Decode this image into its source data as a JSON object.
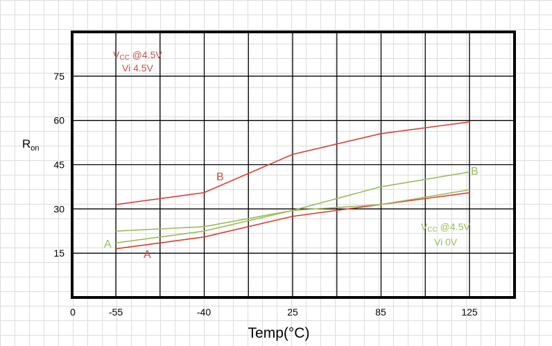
{
  "chart_data": {
    "type": "line",
    "title": "",
    "xlabel": "Temp(°C)",
    "ylabel": {
      "main": "R",
      "sub": "on"
    },
    "x_ticks": [
      "0",
      "-55",
      "-40",
      "25",
      "85",
      "125"
    ],
    "x_categories": [
      "-55",
      "-40",
      "25",
      "85",
      "125"
    ],
    "y_ticks": [
      15,
      30,
      45,
      60,
      75
    ],
    "ylim": [
      0,
      90
    ],
    "grid": true,
    "series": [
      {
        "name": "A",
        "group": "Vi 4.5V",
        "color": "#e0392b",
        "values": [
          16.5,
          20.5,
          27.5,
          31.5,
          35.5
        ]
      },
      {
        "name": "B",
        "group": "Vi 4.5V",
        "color": "#e0392b",
        "values": [
          31.5,
          35.5,
          48.5,
          55.5,
          59.5
        ]
      },
      {
        "name": "A",
        "group": "Vi 0V",
        "color": "#9bbb59",
        "values": [
          18.5,
          22.5,
          29.5,
          31.5,
          36.5
        ]
      },
      {
        "name": "B",
        "group": "Vi 0V",
        "color": "#9bbb59",
        "values": [
          22.5,
          24.0,
          29.5,
          37.5,
          42.5
        ]
      }
    ],
    "annotations": [
      {
        "id": "vcc-red",
        "prefix": "V",
        "sub": "CC",
        "text": " @4.5V",
        "color": "#c0504d"
      },
      {
        "id": "vi-red",
        "text": "Vi 4.5V",
        "color": "#c0504d"
      },
      {
        "id": "vcc-green",
        "prefix": "V",
        "sub": "CC",
        "text": " @4.5V",
        "color": "#9bbb59"
      },
      {
        "id": "vi-green",
        "text": "Vi 0V",
        "color": "#9bbb59"
      }
    ],
    "curve_labels": [
      {
        "text": "A",
        "color": "#c0504d"
      },
      {
        "text": "A",
        "color": "#9bbb59"
      },
      {
        "text": "B",
        "color": "#c0504d"
      },
      {
        "text": "B",
        "color": "#9bbb59"
      }
    ]
  }
}
